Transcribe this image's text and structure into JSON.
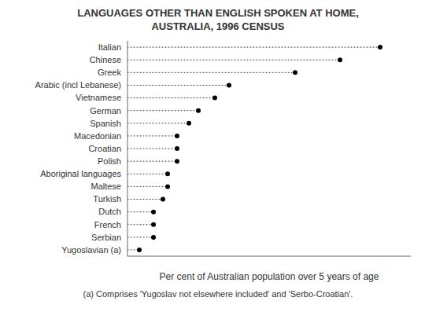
{
  "chart_data": {
    "type": "dot",
    "orientation": "horizontal",
    "title": "LANGUAGES OTHER THAN ENGLISH SPOKEN AT HOME,\nAUSTRALIA, 1996 CENSUS",
    "x_label": "Per cent of Australian population over 5 years of age",
    "annotations": [
      "(a) Comprises 'Yugoslav not elsewhere included' and 'Serbo-Croatian'."
    ],
    "categories": [
      "Italian",
      "Chinese",
      "Greek",
      "Arabic (incl Lebanese)",
      "Vietnamese",
      "German",
      "Spanish",
      "Macedonian",
      "Croatian",
      "Polish",
      "Aboriginal languages",
      "Maltese",
      "Turkish",
      "Dutch",
      "French",
      "Serbian",
      "Yugoslavian (a)"
    ],
    "values": [
      1.07,
      0.9,
      0.71,
      0.43,
      0.37,
      0.3,
      0.26,
      0.21,
      0.21,
      0.21,
      0.17,
      0.17,
      0.15,
      0.11,
      0.11,
      0.11,
      0.05
    ],
    "xlim": [
      0,
      1.2
    ],
    "color": "#000000",
    "grid": false,
    "tick_labels": "y"
  }
}
